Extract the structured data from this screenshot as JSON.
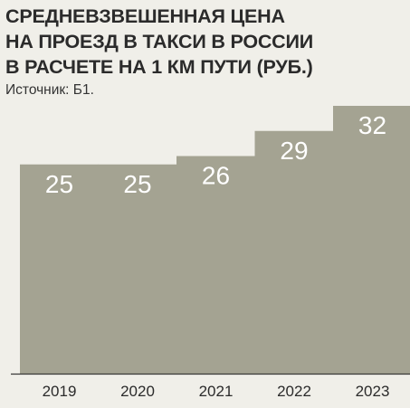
{
  "header": {
    "title_lines": [
      "СРЕДНЕВЗВЕШЕННАЯ ЦЕНА",
      "НА ПРОЕЗД В ТАКСИ В РОССИИ",
      "В РАСЧЕТЕ НА 1 КМ ПУТИ (РУБ.)"
    ],
    "source": "Источник: Б1."
  },
  "colors": {
    "background": "#f0efe9",
    "bar": "#a4a392",
    "bar_label": "#ffffff",
    "axis": "#3a3a3a",
    "text": "#2b2b2b"
  },
  "chart_data": {
    "type": "bar",
    "title": "СРЕДНЕВЗВЕШЕННАЯ ЦЕНА НА ПРОЕЗД В ТАКСИ В РОССИИ В РАСЧЕТЕ НА 1 КМ ПУТИ (РУБ.)",
    "categories": [
      "2019",
      "2020",
      "2021",
      "2022",
      "2023"
    ],
    "values": [
      25,
      25,
      26,
      29,
      32
    ],
    "data_labels": [
      "25",
      "25",
      "26",
      "29",
      "32"
    ],
    "xlabel": "",
    "ylabel": "",
    "ylim": [
      0,
      32
    ],
    "grid": false,
    "legend": "none"
  }
}
